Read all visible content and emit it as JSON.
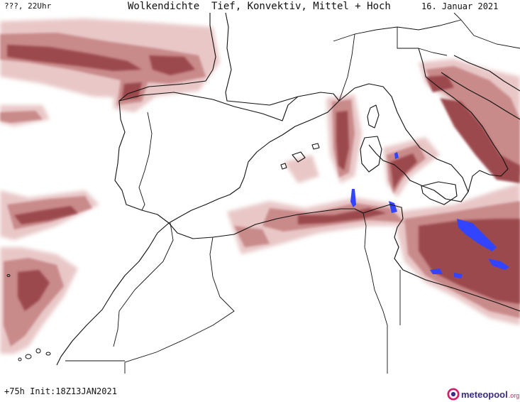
{
  "header": {
    "left": "???, 22Uhr",
    "center": "Wolkendichte  Tief, Konvektiv, Mittel + Hoch",
    "right": "16. Januar 2021"
  },
  "footer": {
    "left": "+75h Init:18Z13JAN2021",
    "logo_text": "meteopool",
    "logo_tld": ".org"
  },
  "colors": {
    "cloud_light": "#e9c7c7",
    "cloud_mid": "#c98a8a",
    "cloud_dark": "#9b4a4e",
    "convective": "#3344ff",
    "coast": "#111111",
    "logo_ring": "#d0206a",
    "logo_text": "#3b2a8a"
  }
}
